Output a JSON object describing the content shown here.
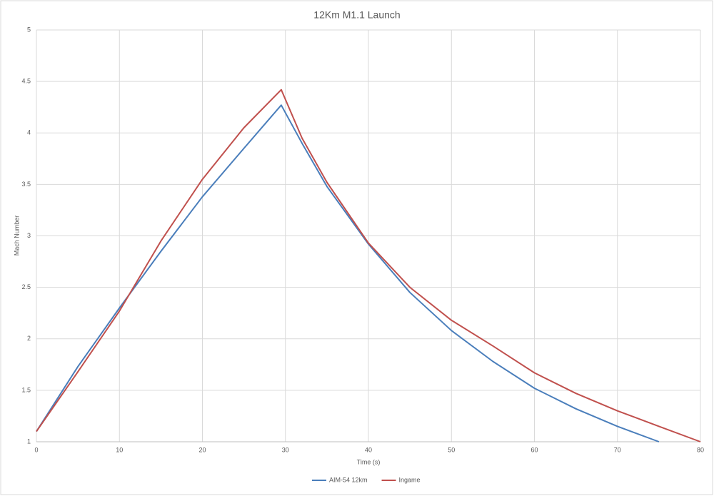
{
  "chart_data": {
    "type": "line",
    "title": "12Km M1.1 Launch",
    "x_label": "Time (s)",
    "y_label": "Mach Number",
    "x": [
      0,
      5,
      10,
      15,
      20,
      25,
      29.5,
      32,
      35,
      40,
      45,
      50,
      55,
      60,
      65,
      70,
      75,
      80
    ],
    "series": [
      {
        "name": "AIM-54 12km",
        "color": "#4a7ebb",
        "values": [
          1.1,
          1.73,
          2.3,
          2.85,
          3.38,
          3.85,
          4.27,
          3.9,
          3.48,
          2.92,
          2.45,
          2.08,
          1.78,
          1.52,
          1.32,
          1.15,
          1.0,
          null
        ]
      },
      {
        "name": "Ingame",
        "color": "#c0504d",
        "values": [
          1.1,
          1.68,
          2.27,
          2.95,
          3.55,
          4.05,
          4.42,
          3.95,
          3.52,
          2.93,
          2.5,
          2.18,
          1.93,
          1.67,
          1.47,
          1.3,
          1.15,
          1.0
        ]
      }
    ],
    "xlim": [
      0,
      80
    ],
    "xticks": [
      0,
      10,
      20,
      30,
      40,
      50,
      60,
      70,
      80
    ],
    "ylim": [
      1,
      5
    ],
    "yticks": [
      1,
      1.5,
      2,
      2.5,
      3,
      3.5,
      4,
      4.5,
      5
    ],
    "grid": true,
    "legend": "bottom"
  }
}
